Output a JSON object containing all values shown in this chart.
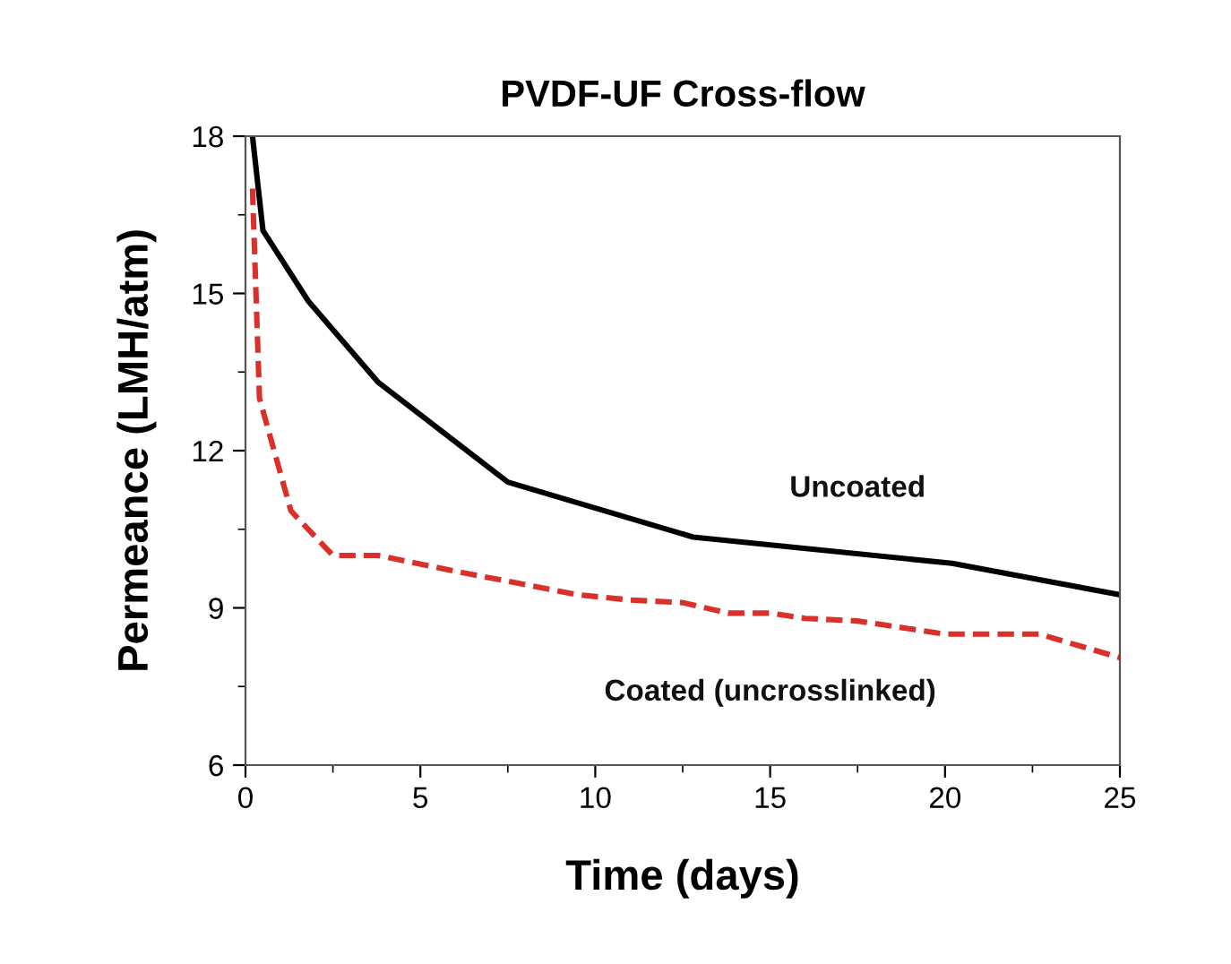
{
  "chart_data": {
    "type": "line",
    "title": "PVDF-UF Cross-flow",
    "xlabel": "Time (days)",
    "ylabel": "Permeance (LMH/atm)",
    "xlim": [
      0,
      25
    ],
    "ylim": [
      6,
      18
    ],
    "xticks": [
      0,
      5,
      10,
      15,
      20,
      25
    ],
    "yticks": [
      6,
      9,
      12,
      15,
      18
    ],
    "grid": false,
    "legend": false,
    "marker": "none",
    "series": [
      {
        "name": "Uncoated",
        "color": "#000000",
        "line_style": "solid",
        "x": [
          0.2,
          0.5,
          1.8,
          3.8,
          7.5,
          12.8,
          20.2,
          25
        ],
        "values": [
          18,
          16.2,
          14.85,
          13.3,
          11.4,
          10.35,
          9.85,
          9.25
        ]
      },
      {
        "name": "Coated (uncrosslinked)",
        "color": "#d9302a",
        "line_style": "dashed",
        "x": [
          0.2,
          0.4,
          1.3,
          2.5,
          3.8,
          6,
          9.5,
          11,
          12.5,
          13.8,
          15,
          16,
          17.5,
          20,
          22.7,
          25
        ],
        "values": [
          17,
          13,
          10.85,
          10.0,
          10.0,
          9.7,
          9.25,
          9.15,
          9.1,
          8.9,
          8.9,
          8.8,
          8.75,
          8.5,
          8.5,
          8.05
        ]
      }
    ]
  }
}
